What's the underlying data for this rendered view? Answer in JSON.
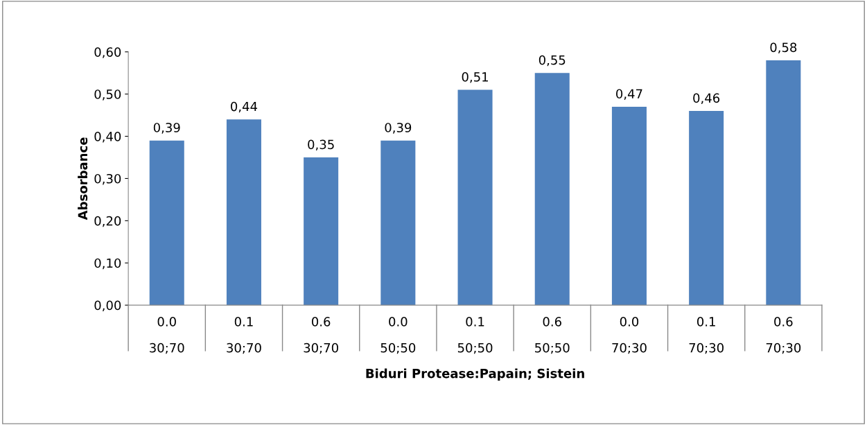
{
  "chart_data": {
    "type": "bar",
    "xlabel": "Biduri Protease:Papain; Sistein",
    "ylabel": "Absorbance",
    "categories": [
      "0.0\n30;70",
      "0.1\n30;70",
      "0.6\n30;70",
      "0.0\n50;50",
      "0.1\n50;50",
      "0.6\n50;50",
      "0.0\n70;30",
      "0.1\n70;30",
      "0.6\n70;30"
    ],
    "values": [
      0.39,
      0.44,
      0.35,
      0.39,
      0.51,
      0.55,
      0.47,
      0.46,
      0.58
    ],
    "value_labels": [
      "0,39",
      "0,44",
      "0,35",
      "0,39",
      "0,51",
      "0,55",
      "0,47",
      "0,46",
      "0,58"
    ],
    "color": "#4f81bd",
    "ylim": [
      0,
      0.6
    ],
    "yticks": [
      {
        "value": 0,
        "label": "0,00"
      },
      {
        "value": 0.1,
        "label": "0,10"
      },
      {
        "value": 0.2,
        "label": "0,20"
      },
      {
        "value": 0.3,
        "label": "0,30"
      },
      {
        "value": 0.4,
        "label": "0,40"
      },
      {
        "value": 0.5,
        "label": "0,50"
      },
      {
        "value": 0.6,
        "label": "0,60"
      }
    ],
    "grid": false,
    "legend": false
  }
}
